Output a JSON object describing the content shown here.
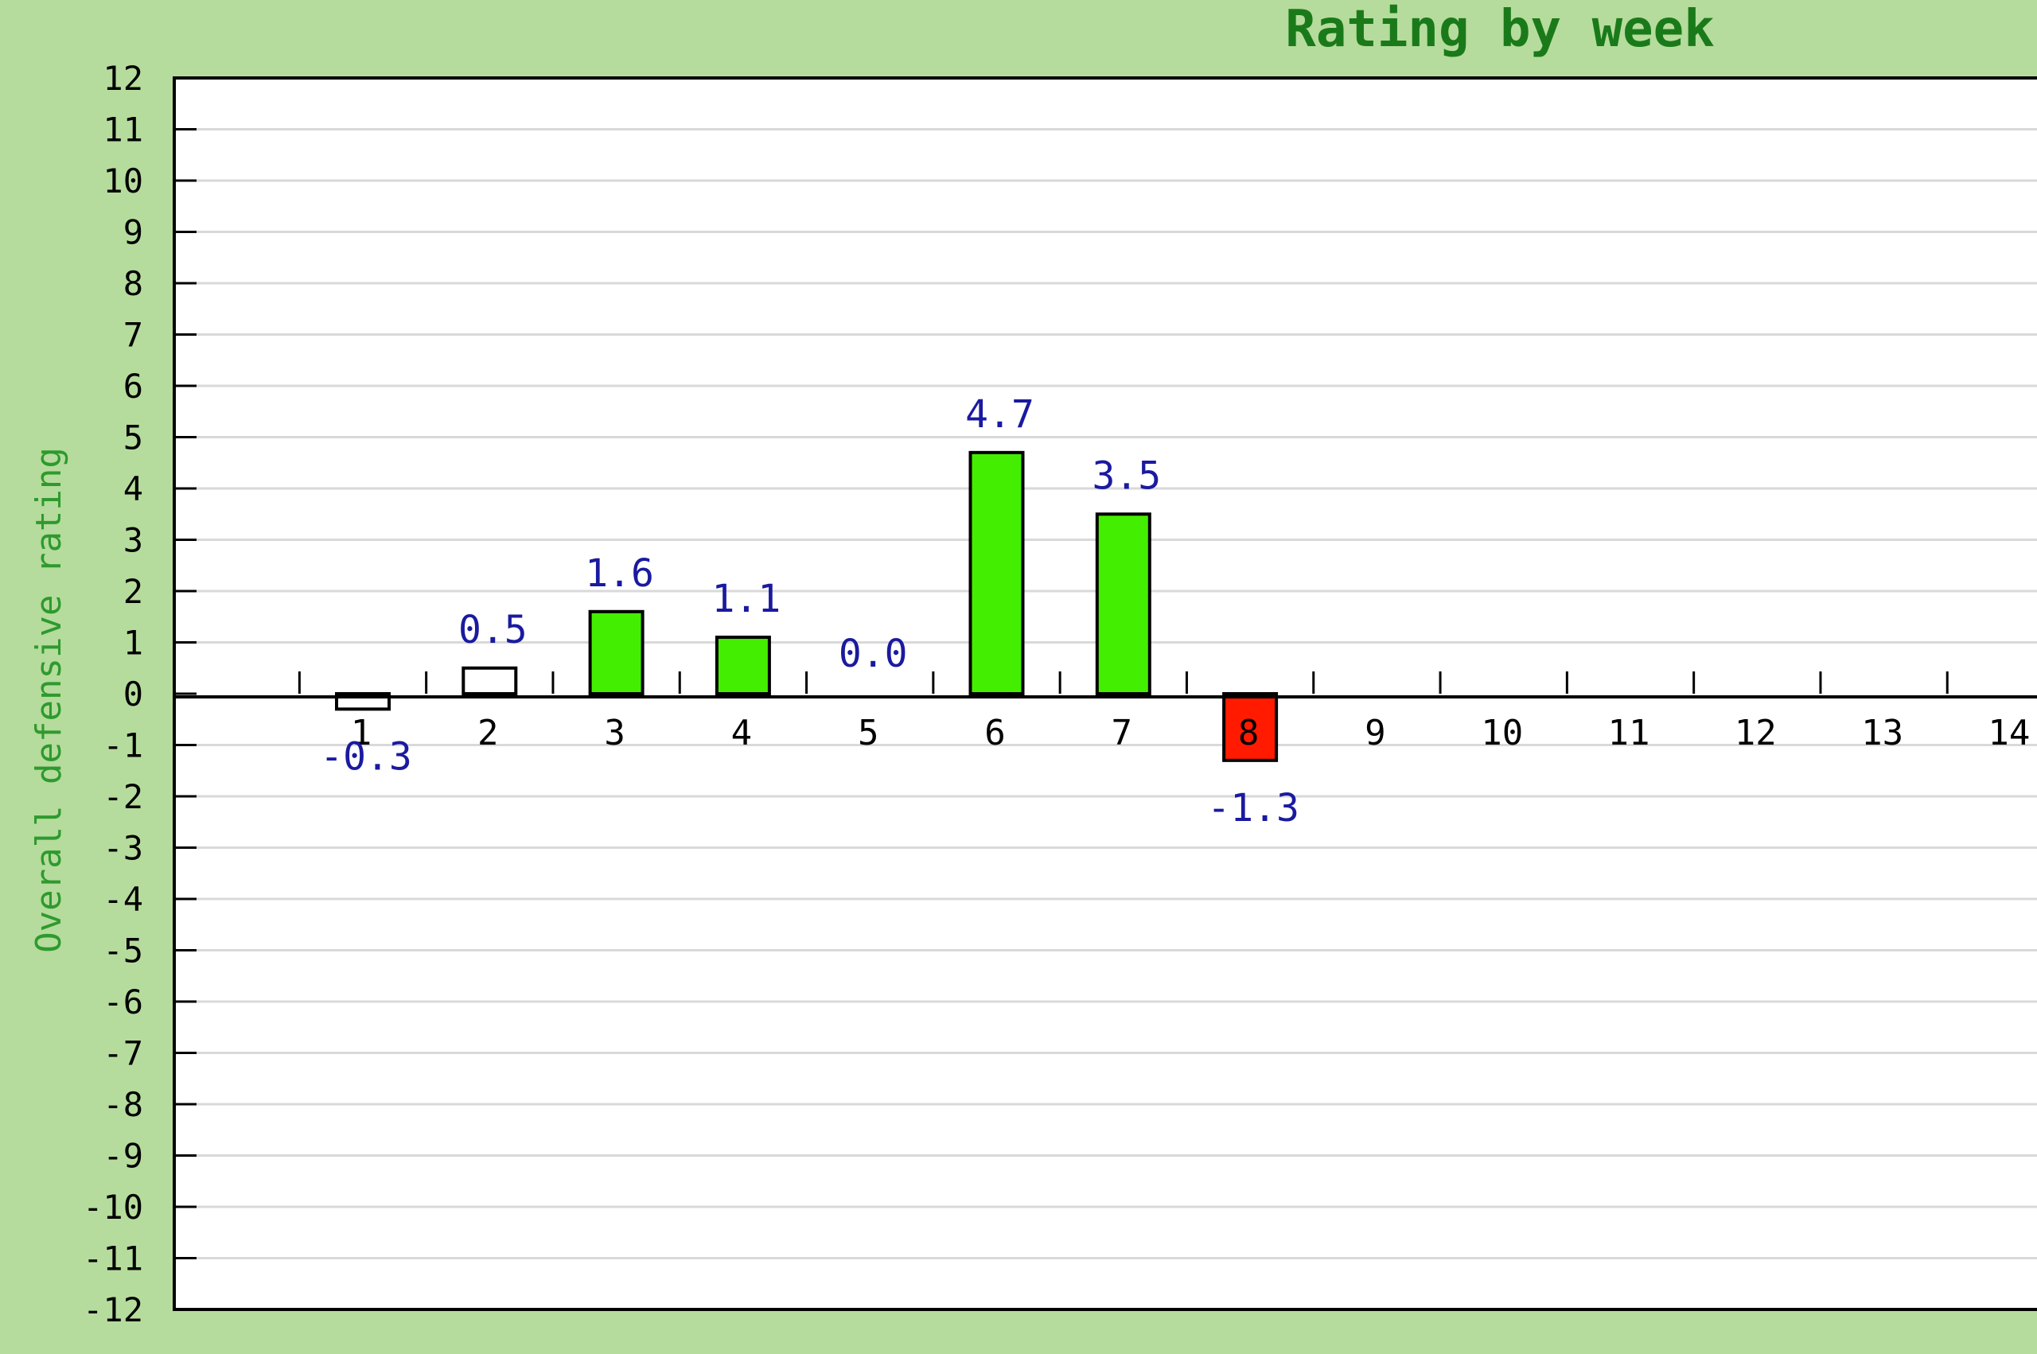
{
  "chart_data": {
    "type": "bar",
    "title": "Rating by week",
    "xlabel": "",
    "ylabel": "Overall defensive rating",
    "ylim": [
      -12,
      12
    ],
    "yticks": [
      "12",
      "11",
      "10",
      "9",
      "8",
      "7",
      "6",
      "5",
      "4",
      "3",
      "2",
      "1",
      "0",
      "-1",
      "-2",
      "-3",
      "-4",
      "-5",
      "-6",
      "-7",
      "-8",
      "-9",
      "-10",
      "-11",
      "-12"
    ],
    "categories": [
      "1",
      "2",
      "3",
      "4",
      "5",
      "6",
      "7",
      "8",
      "9",
      "10",
      "11",
      "12",
      "13",
      "14"
    ],
    "values": [
      -0.3,
      0.5,
      1.6,
      1.1,
      0.0,
      4.7,
      3.5,
      -1.3,
      null,
      null,
      null,
      null,
      null,
      null
    ],
    "data_labels": [
      "-0.3",
      "0.5",
      "1.6",
      "1.1",
      "0.0",
      "4.7",
      "3.5",
      "-1.3",
      "",
      "",
      "",
      "",
      "",
      ""
    ],
    "bar_colors": [
      "#ffffff",
      "#ffffff",
      "#44ee00",
      "#44ee00",
      "#ffffff",
      "#44ee00",
      "#44ee00",
      "#ff1a00",
      "",
      "",
      "",
      "",
      "",
      ""
    ],
    "grid": true,
    "legend": "none"
  },
  "colors": {
    "background": "#b5dc9c",
    "plot_background": "#ffffff",
    "gridline": "#d9d9d9",
    "title": "#1a7a1a",
    "ylabel": "#2e9a2e",
    "data_label": "#1a1aa0",
    "positive_bar": "#44ee00",
    "negative_bar": "#ff1a00",
    "neutral_bar": "#ffffff"
  }
}
